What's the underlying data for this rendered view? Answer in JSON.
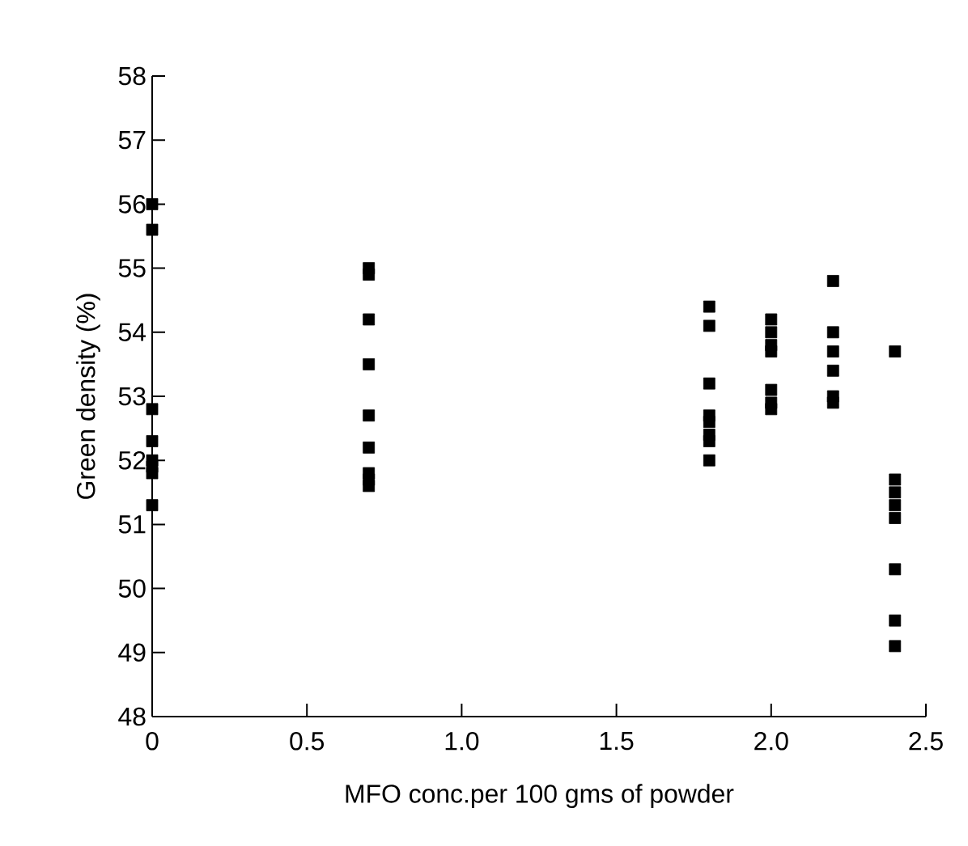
{
  "chart_data": {
    "type": "scatter",
    "xlabel": "MFO conc.per 100 gms of powder",
    "ylabel": "Green density (%)",
    "x": [
      0,
      0,
      0,
      0,
      0,
      0,
      0,
      0,
      0.7,
      0.7,
      0.7,
      0.7,
      0.7,
      0.7,
      0.7,
      0.7,
      0.7,
      1.8,
      1.8,
      1.8,
      1.8,
      1.8,
      1.8,
      1.8,
      1.8,
      2.0,
      2.0,
      2.0,
      2.0,
      2.0,
      2.0,
      2.0,
      2.2,
      2.2,
      2.2,
      2.2,
      2.2,
      2.2,
      2.4,
      2.4,
      2.4,
      2.4,
      2.4,
      2.4,
      2.4,
      2.4
    ],
    "values": [
      56.0,
      55.6,
      52.8,
      52.3,
      52.0,
      51.9,
      51.8,
      51.3,
      55.0,
      54.9,
      54.2,
      53.5,
      52.7,
      52.2,
      51.8,
      51.7,
      51.6,
      54.4,
      54.1,
      53.2,
      52.7,
      52.6,
      52.4,
      52.3,
      52.0,
      54.2,
      54.0,
      53.8,
      53.7,
      53.1,
      52.9,
      52.8,
      54.8,
      54.0,
      53.7,
      53.4,
      53.0,
      52.9,
      53.7,
      51.7,
      51.5,
      51.3,
      51.1,
      50.3,
      49.5,
      49.1
    ],
    "color": "#000000",
    "marker": "square",
    "xlim": [
      0,
      2.5
    ],
    "xticks": [
      0,
      0.5,
      {
        "value": 1.0,
        "label": "1.0"
      },
      1.5,
      {
        "value": 2.0,
        "label": "2.0"
      },
      2.5
    ],
    "ylim": [
      48,
      58
    ],
    "yticks": [
      48,
      49,
      50,
      51,
      52,
      53,
      54,
      55,
      56,
      57,
      58
    ]
  }
}
